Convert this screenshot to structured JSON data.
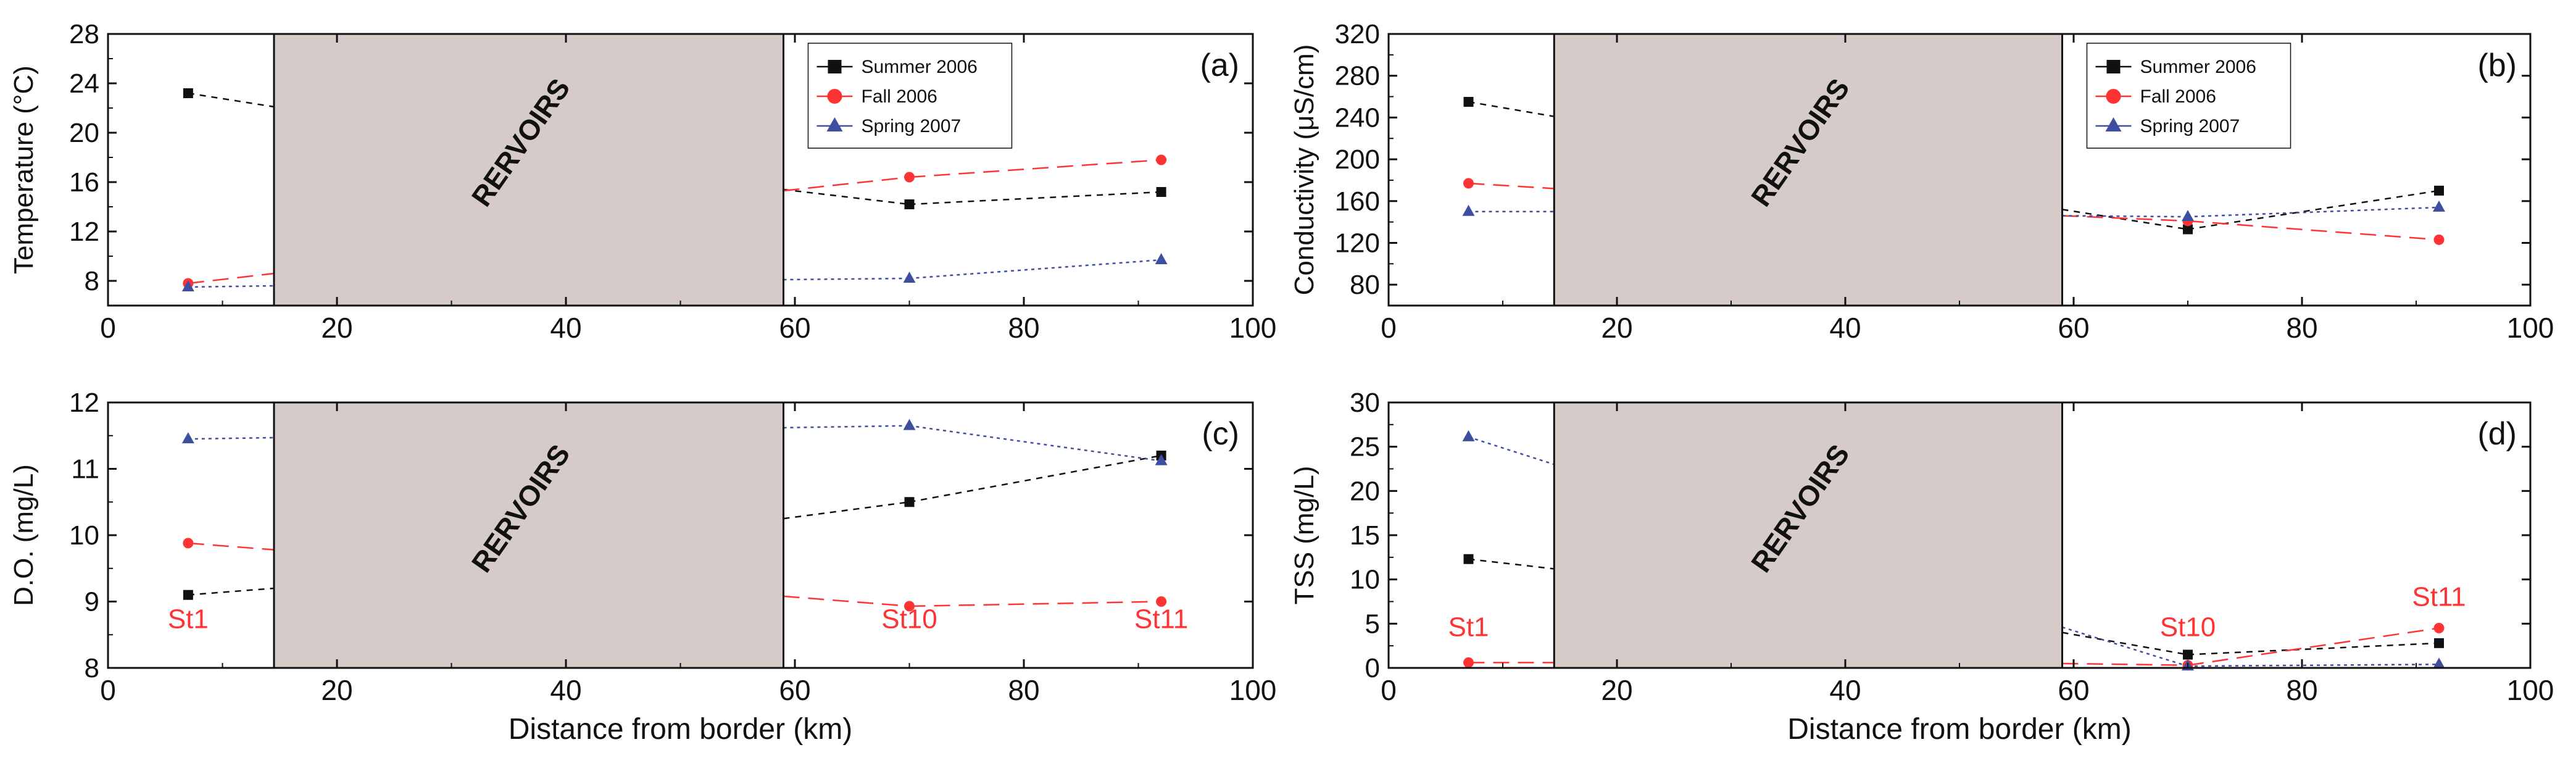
{
  "colors": {
    "black": "#111111",
    "red": "#ff3333",
    "blue": "#3f4f9f",
    "reservoir_fill": "#d6cbc8",
    "station_label": "#ff3333"
  },
  "shared": {
    "xlabel": "Distance from border (km)",
    "xlim": [
      0,
      100
    ],
    "xticks": [
      "0",
      "20",
      "40",
      "60",
      "80",
      "100"
    ],
    "reservoir_label": "RERVOIRS"
  },
  "chart_data": [
    {
      "type": "line",
      "panel_label": "(a)",
      "ylabel": "Temperature (°C)",
      "xlabel": "",
      "ylim": [
        6,
        28
      ],
      "yticks": [
        8,
        12,
        16,
        20,
        24,
        28
      ],
      "reservoir_x": [
        14.5,
        59
      ],
      "legend": "top-right",
      "station_labels": [],
      "series": [
        {
          "name": "Summer 2006",
          "color": "#111111",
          "marker": "square",
          "x": [
            7,
            70,
            92
          ],
          "values": [
            23.2,
            14.2,
            15.2
          ],
          "entry_y": 22.1,
          "exit_y": 15.4
        },
        {
          "name": "Fall 2006",
          "color": "#ff3333",
          "marker": "circle",
          "x": [
            7,
            70,
            92
          ],
          "values": [
            7.8,
            16.4,
            17.8
          ],
          "entry_y": 8.6,
          "exit_y": 15.3
        },
        {
          "name": "Spring 2007",
          "color": "#3f4f9f",
          "marker": "triangle",
          "x": [
            7,
            70,
            92
          ],
          "values": [
            7.5,
            8.2,
            9.7
          ],
          "entry_y": 7.6,
          "exit_y": 8.1
        }
      ]
    },
    {
      "type": "line",
      "panel_label": "(b)",
      "ylabel": "Conductivity (μS/cm)",
      "xlabel": "",
      "ylim": [
        60,
        320
      ],
      "yticks": [
        80,
        120,
        160,
        200,
        240,
        280,
        320
      ],
      "reservoir_x": [
        14.5,
        59
      ],
      "legend": "top-right",
      "station_labels": [],
      "series": [
        {
          "name": "Summer 2006",
          "color": "#111111",
          "marker": "square",
          "x": [
            7,
            70,
            92
          ],
          "values": [
            255,
            133,
            170
          ],
          "entry_y": 241,
          "exit_y": 152
        },
        {
          "name": "Fall 2006",
          "color": "#ff3333",
          "marker": "circle",
          "x": [
            7,
            70,
            92
          ],
          "values": [
            177,
            141,
            123
          ],
          "entry_y": 172,
          "exit_y": 146
        },
        {
          "name": "Spring 2007",
          "color": "#3f4f9f",
          "marker": "triangle",
          "x": [
            7,
            70,
            92
          ],
          "values": [
            150,
            145,
            154
          ],
          "entry_y": 150,
          "exit_y": 146
        }
      ]
    },
    {
      "type": "line",
      "panel_label": "(c)",
      "ylabel": "D.O. (mg/L)",
      "xlabel": "Distance from border (km)",
      "ylim": [
        8,
        12
      ],
      "yticks": [
        8,
        9,
        10,
        11,
        12
      ],
      "reservoir_x": [
        14.5,
        59
      ],
      "legend": "",
      "station_labels": [
        {
          "text": "St1",
          "x": 7,
          "y": 8.6
        },
        {
          "text": "St10",
          "x": 70,
          "y": 8.6
        },
        {
          "text": "St11",
          "x": 92,
          "y": 8.6
        }
      ],
      "series": [
        {
          "name": "Summer 2006",
          "color": "#111111",
          "marker": "square",
          "x": [
            7,
            70,
            92
          ],
          "values": [
            9.1,
            10.5,
            11.2
          ],
          "entry_y": 9.2,
          "exit_y": 10.25
        },
        {
          "name": "Fall 2006",
          "color": "#ff3333",
          "marker": "circle",
          "x": [
            7,
            70,
            92
          ],
          "values": [
            9.88,
            8.93,
            9.0
          ],
          "entry_y": 9.78,
          "exit_y": 9.08
        },
        {
          "name": "Spring 2007",
          "color": "#3f4f9f",
          "marker": "triangle",
          "x": [
            7,
            70,
            92
          ],
          "values": [
            11.45,
            11.65,
            11.12
          ],
          "entry_y": 11.47,
          "exit_y": 11.62
        }
      ]
    },
    {
      "type": "line",
      "panel_label": "(d)",
      "ylabel": "TSS (mg/L)",
      "xlabel": "Distance from border (km)",
      "ylim": [
        0,
        30
      ],
      "yticks": [
        0,
        5,
        10,
        15,
        20,
        25,
        30
      ],
      "reservoir_x": [
        14.5,
        59
      ],
      "legend": "",
      "station_labels": [
        {
          "text": "St1",
          "x": 7,
          "y": 3.6
        },
        {
          "text": "St10",
          "x": 70,
          "y": 3.6
        },
        {
          "text": "St11",
          "x": 92,
          "y": 7.0
        }
      ],
      "series": [
        {
          "name": "Summer 2006",
          "color": "#111111",
          "marker": "square",
          "x": [
            7,
            70,
            92
          ],
          "values": [
            12.3,
            1.5,
            2.8
          ],
          "entry_y": 11.2,
          "exit_y": 4.0
        },
        {
          "name": "Fall 2006",
          "color": "#ff3333",
          "marker": "circle",
          "x": [
            7,
            70,
            92
          ],
          "values": [
            0.6,
            0.3,
            4.5
          ],
          "entry_y": 0.6,
          "exit_y": 0.5
        },
        {
          "name": "Spring 2007",
          "color": "#3f4f9f",
          "marker": "triangle",
          "x": [
            7,
            70,
            92
          ],
          "values": [
            26.1,
            0.2,
            0.4
          ],
          "entry_y": 23.0,
          "exit_y": 4.6
        }
      ]
    }
  ]
}
